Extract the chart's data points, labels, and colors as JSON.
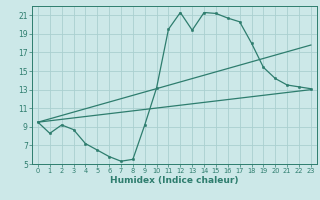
{
  "xlabel": "Humidex (Indice chaleur)",
  "ylabel": "",
  "bg_color": "#cce8e8",
  "grid_color": "#aad0d0",
  "line_color": "#2e7d6e",
  "xlim": [
    -0.5,
    23.5
  ],
  "ylim": [
    5,
    22
  ],
  "xticks": [
    0,
    1,
    2,
    3,
    4,
    5,
    6,
    7,
    8,
    9,
    10,
    11,
    12,
    13,
    14,
    15,
    16,
    17,
    18,
    19,
    20,
    21,
    22,
    23
  ],
  "yticks": [
    5,
    7,
    9,
    11,
    13,
    15,
    17,
    19,
    21
  ],
  "line1_x": [
    0,
    1,
    2,
    3,
    4,
    5,
    6,
    7,
    8,
    9,
    10,
    11,
    12,
    13,
    14,
    15,
    16,
    17,
    18,
    19,
    20,
    21,
    22,
    23
  ],
  "line1_y": [
    9.5,
    8.3,
    9.2,
    8.7,
    7.2,
    6.5,
    5.8,
    5.3,
    5.5,
    9.2,
    13.2,
    19.5,
    21.3,
    19.4,
    21.3,
    21.2,
    20.7,
    20.3,
    18.0,
    15.4,
    14.2,
    13.5,
    13.3,
    13.1
  ],
  "line2_x": [
    0,
    23
  ],
  "line2_y": [
    9.5,
    13.0
  ],
  "line3_x": [
    0,
    23
  ],
  "line3_y": [
    9.5,
    17.8
  ]
}
